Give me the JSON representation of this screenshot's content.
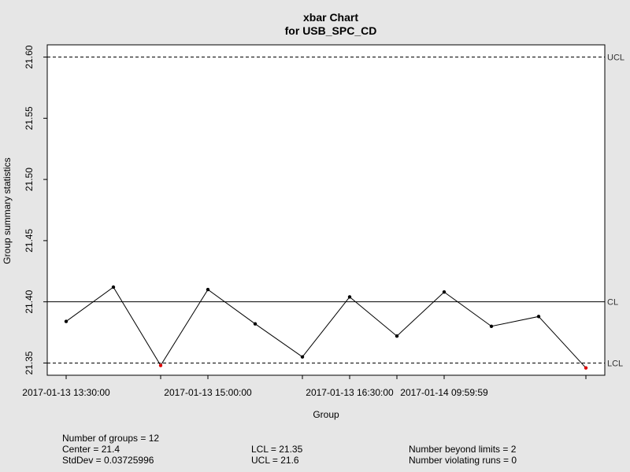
{
  "chart_data": {
    "type": "line",
    "title": "xbar Chart",
    "subtitle": "for USB_SPC_CD",
    "xlabel": "Group",
    "ylabel": "Group summary statistics",
    "ylim": [
      21.34,
      21.61
    ],
    "yticks": [
      "21.35",
      "21.40",
      "21.45",
      "21.50",
      "21.55",
      "21.60"
    ],
    "x_tick_labels": [
      {
        "group": 1,
        "label": "2017-01-13 13:30:00"
      },
      {
        "group": 4,
        "label": "2017-01-13 15:00:00"
      },
      {
        "group": 7,
        "label": "2017-01-13 16:30:00"
      },
      {
        "group": 9,
        "label": "2017-01-14 09:59:59"
      }
    ],
    "x_tick_marks": [
      1,
      3,
      4,
      6,
      7,
      8,
      9,
      12
    ],
    "values": [
      21.384,
      21.412,
      21.348,
      21.41,
      21.382,
      21.355,
      21.404,
      21.372,
      21.408,
      21.38,
      21.388,
      21.346
    ],
    "out_of_control": [
      3,
      12
    ],
    "point_color": "#000000",
    "violation_color": "#dd0000",
    "limits": [
      {
        "label": "UCL",
        "value": 21.6,
        "style": "dashed"
      },
      {
        "label": "CL",
        "value": 21.4,
        "style": "solid"
      },
      {
        "label": "LCL",
        "value": 21.35,
        "style": "dashed"
      }
    ],
    "grid": false
  },
  "stats": {
    "groups": "Number of groups = 12",
    "center": "Center = 21.4",
    "stddev": "StdDev = 0.03725996",
    "lcl": "LCL = 21.35",
    "ucl": "UCL = 21.6",
    "beyond": "Number beyond limits = 2",
    "violating": "Number violating runs = 0"
  }
}
